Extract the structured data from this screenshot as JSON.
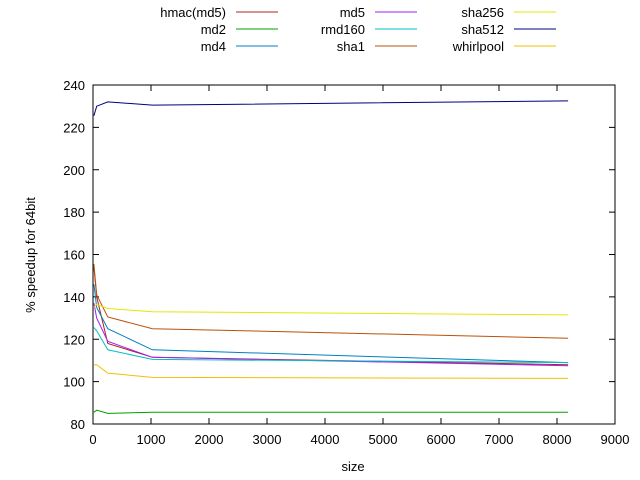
{
  "chart_data": {
    "type": "line",
    "title": "",
    "xlabel": "size",
    "ylabel": "% speedup for 64bit",
    "xlim": [
      0,
      9000
    ],
    "ylim": [
      80,
      240
    ],
    "xticks": [
      0,
      1000,
      2000,
      3000,
      4000,
      5000,
      6000,
      7000,
      8000,
      9000
    ],
    "yticks": [
      80,
      100,
      120,
      140,
      160,
      180,
      200,
      220,
      240
    ],
    "grid": false,
    "legend_position": "top, outside plot, three columns",
    "series": [
      {
        "name": "hmac(md5)",
        "color": "#b22222",
        "x": [
          16,
          64,
          256,
          1024,
          8192
        ],
        "y": [
          154,
          140,
          118,
          111.5,
          108
        ]
      },
      {
        "name": "md2",
        "color": "#00a000",
        "x": [
          16,
          64,
          256,
          1024,
          8192
        ],
        "y": [
          85.5,
          86.5,
          85,
          85.5,
          85.5
        ]
      },
      {
        "name": "md4",
        "color": "#0080c0",
        "x": [
          16,
          64,
          256,
          1024,
          8192
        ],
        "y": [
          146,
          135,
          125,
          115,
          109
        ]
      },
      {
        "name": "md5",
        "color": "#a020f0",
        "x": [
          16,
          64,
          256,
          1024,
          8192
        ],
        "y": [
          137,
          130,
          119,
          111.5,
          107.5
        ]
      },
      {
        "name": "rmd160",
        "color": "#00c0c0",
        "x": [
          16,
          64,
          256,
          1024,
          8192
        ],
        "y": [
          125.5,
          124,
          115,
          110.5,
          109
        ]
      },
      {
        "name": "sha1",
        "color": "#b8520b",
        "x": [
          16,
          64,
          256,
          1024,
          8192
        ],
        "y": [
          155.5,
          141,
          130.5,
          125,
          120.5
        ]
      },
      {
        "name": "sha256",
        "color": "#e6e600",
        "x": [
          16,
          64,
          256,
          1024,
          8192
        ],
        "y": [
          135,
          136.5,
          134.5,
          133,
          131.5
        ]
      },
      {
        "name": "sha512",
        "color": "#000080",
        "x": [
          16,
          64,
          256,
          1024,
          8192
        ],
        "y": [
          225.5,
          230,
          232,
          230.5,
          232.5
        ]
      },
      {
        "name": "whirlpool",
        "color": "#f0c000",
        "x": [
          16,
          64,
          256,
          1024,
          8192
        ],
        "y": [
          108,
          108,
          104,
          102,
          101.5
        ]
      }
    ]
  }
}
